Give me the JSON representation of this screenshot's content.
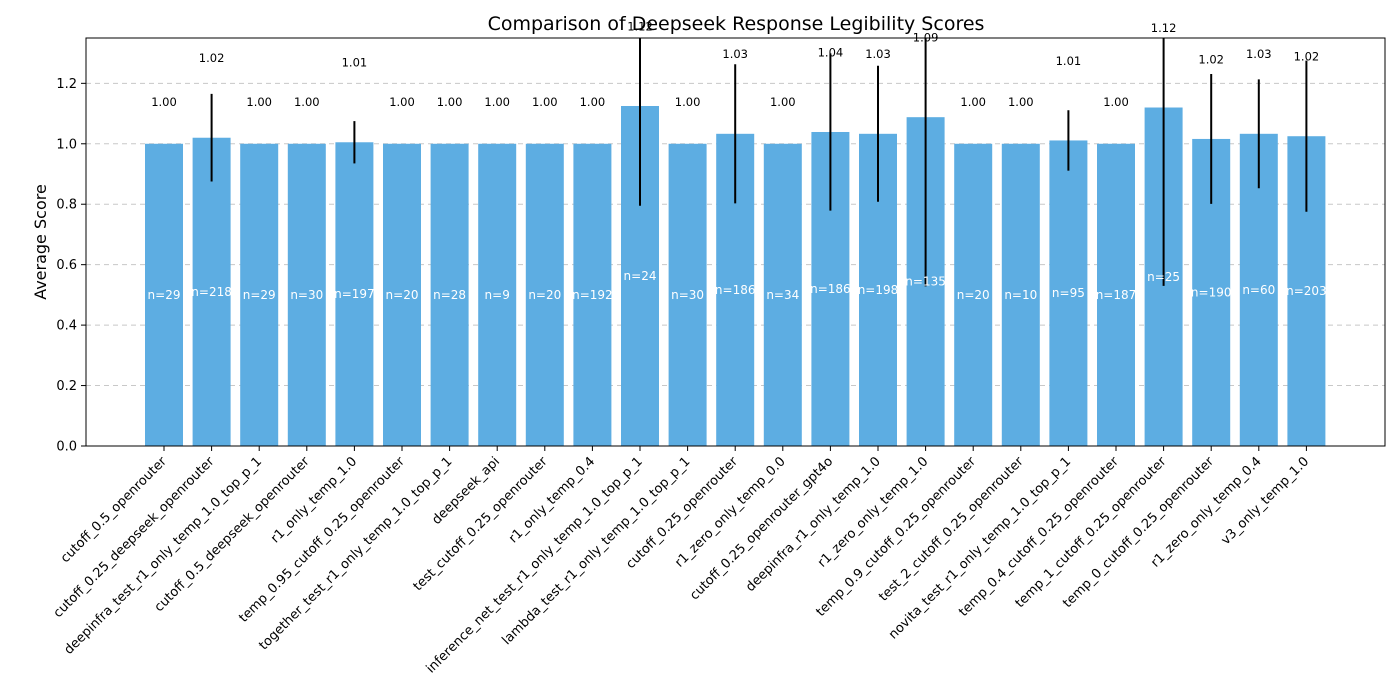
{
  "chart_data": {
    "type": "bar",
    "title": "Comparison of Deepseek Response Legibility Scores",
    "xlabel": "",
    "ylabel": "Average Score",
    "ylim": [
      0.0,
      1.35
    ],
    "yticks": [
      "0.0",
      "0.2",
      "0.4",
      "0.6",
      "0.8",
      "1.0",
      "1.2"
    ],
    "grid": "horizontal dashed",
    "bar_color": "#5DADE2",
    "categories": [
      "cutoff_0.5_openrouter",
      "cutoff_0.25_deepseek_openrouter",
      "deepinfra_test_r1_only_temp_1.0_top_p_1",
      "cutoff_0.5_deepseek_openrouter",
      "r1_only_temp_1.0",
      "temp_0.95_cutoff_0.25_openrouter",
      "together_test_r1_only_temp_1.0_top_p_1",
      "deepseek_api",
      "test_cutoff_0.25_openrouter",
      "r1_only_temp_0.4",
      "inference_net_test_r1_only_temp_1.0_top_p_1",
      "lambda_test_r1_only_temp_1.0_top_p_1",
      "cutoff_0.25_openrouter",
      "r1_zero_only_temp_0.0",
      "cutoff_0.25_openrouter_gpt4o",
      "deepinfra_r1_only_temp_1.0",
      "r1_zero_only_temp_1.0",
      "temp_0.9_cutoff_0.25_openrouter",
      "test_2_cutoff_0.25_openrouter",
      "novita_test_r1_only_temp_1.0_top_p_1",
      "temp_0.4_cutoff_0.25_openrouter",
      "temp_1_cutoff_0.25_openrouter",
      "temp_0_cutoff_0.25_openrouter",
      "r1_zero_only_temp_0.4",
      "v3_only_temp_1.0"
    ],
    "values": [
      1.0,
      1.02,
      1.0,
      1.0,
      1.005,
      1.0,
      1.0,
      1.0,
      1.0,
      1.0,
      1.125,
      1.0,
      1.033,
      1.0,
      1.039,
      1.033,
      1.088,
      1.0,
      1.0,
      1.011,
      1.0,
      1.12,
      1.016,
      1.033,
      1.025
    ],
    "value_labels": [
      "1.00",
      "1.02",
      "1.00",
      "1.00",
      "1.01",
      "1.00",
      "1.00",
      "1.00",
      "1.00",
      "1.00",
      "1.12",
      "1.00",
      "1.03",
      "1.00",
      "1.04",
      "1.03",
      "1.09",
      "1.00",
      "1.00",
      "1.01",
      "1.00",
      "1.12",
      "1.02",
      "1.03",
      "1.02"
    ],
    "errors": [
      0,
      0.145,
      0,
      0,
      0.07,
      0,
      0,
      0,
      0,
      0,
      0.33,
      0,
      0.23,
      0,
      0.26,
      0.225,
      0.56,
      0,
      0,
      0.1,
      0,
      0.59,
      0.215,
      0.18,
      0.25
    ],
    "n_labels": [
      "n=29",
      "n=218",
      "n=29",
      "n=30",
      "n=197",
      "n=20",
      "n=28",
      "n=9",
      "n=20",
      "n=192",
      "n=24",
      "n=30",
      "n=186",
      "n=34",
      "n=186",
      "n=198",
      "n=135",
      "n=20",
      "n=10",
      "n=95",
      "n=187",
      "n=25",
      "n=190",
      "n=60",
      "n=203"
    ]
  }
}
